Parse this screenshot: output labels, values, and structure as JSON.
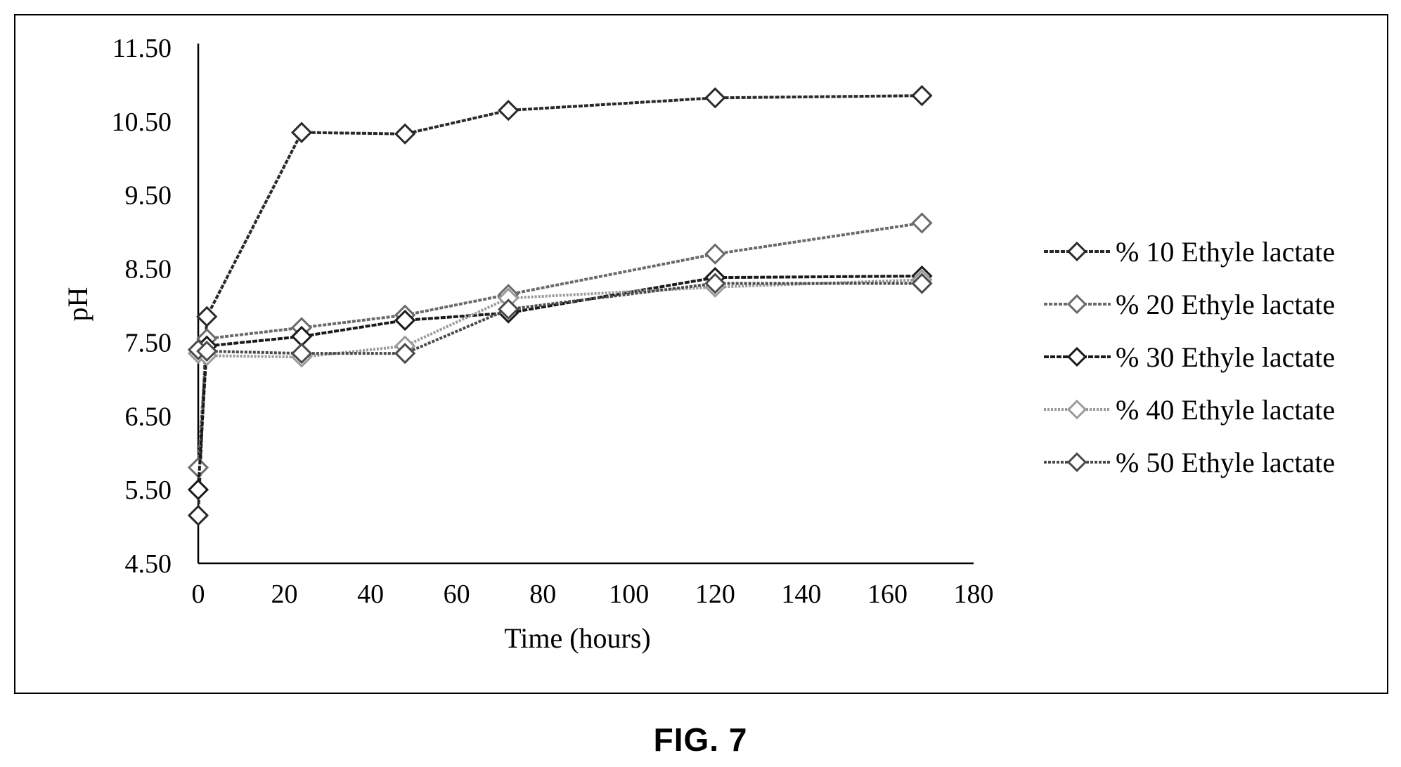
{
  "figure": {
    "caption": "FIG. 7"
  },
  "chart_data": {
    "type": "line",
    "title": "",
    "xlabel": "Time (hours)",
    "ylabel": "pH",
    "xlim": [
      0,
      180
    ],
    "ylim": [
      4.5,
      11.5
    ],
    "x_ticks": [
      0,
      20,
      40,
      60,
      80,
      100,
      120,
      140,
      160,
      180
    ],
    "y_ticks": [
      "4.50",
      "5.50",
      "6.50",
      "7.50",
      "8.50",
      "9.50",
      "10.50",
      "11.50"
    ],
    "grid": false,
    "legend_position": "right",
    "marker": "diamond",
    "series": [
      {
        "name": "% 10 Ethyle lactate",
        "color": "#2a2a2a",
        "dash": "6 2",
        "x": [
          0,
          2,
          24,
          48,
          72,
          120,
          168
        ],
        "y": [
          5.15,
          7.85,
          10.35,
          10.33,
          10.65,
          10.82,
          10.85
        ]
      },
      {
        "name": "% 20 Ethyle lactate",
        "color": "#6a6a6a",
        "dash": "5 2",
        "x": [
          0,
          2,
          24,
          48,
          72,
          120,
          168
        ],
        "y": [
          5.8,
          7.55,
          7.7,
          7.87,
          8.15,
          8.7,
          9.12
        ]
      },
      {
        "name": "% 30 Ethyle lactate",
        "color": "#1a1a1a",
        "dash": "7 2",
        "x": [
          0,
          2,
          24,
          48,
          72,
          120,
          168
        ],
        "y": [
          5.5,
          7.45,
          7.58,
          7.8,
          7.9,
          8.38,
          8.4
        ]
      },
      {
        "name": "% 40 Ethyle lactate",
        "color": "#9a9a9a",
        "dash": "3 2",
        "x": [
          0,
          2,
          24,
          48,
          72,
          120,
          168
        ],
        "y": [
          7.35,
          7.32,
          7.3,
          7.45,
          8.1,
          8.25,
          8.35
        ]
      },
      {
        "name": "% 50 Ethyle lactate",
        "color": "#4a4a4a",
        "dash": "4 2",
        "x": [
          0,
          2,
          24,
          48,
          72,
          120,
          168
        ],
        "y": [
          7.4,
          7.38,
          7.35,
          7.35,
          7.95,
          8.3,
          8.3
        ]
      }
    ]
  }
}
